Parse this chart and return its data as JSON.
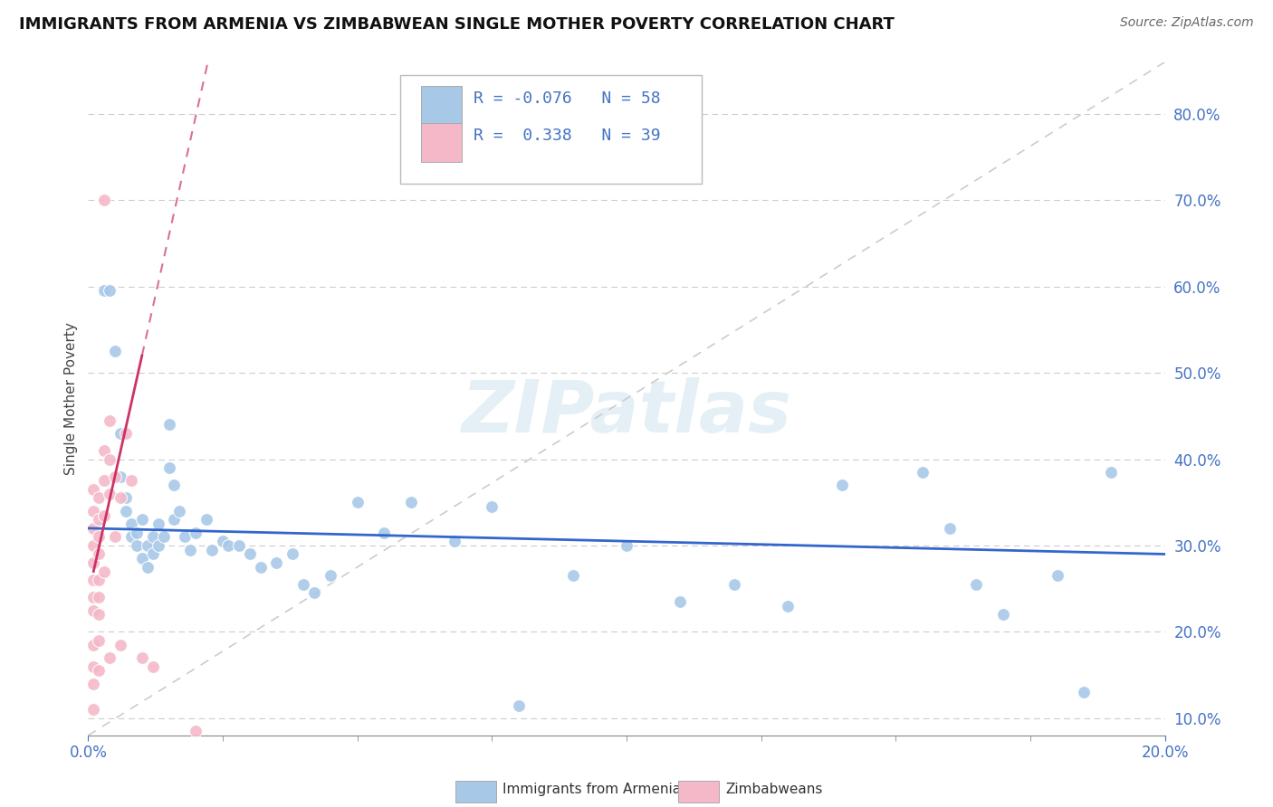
{
  "title": "IMMIGRANTS FROM ARMENIA VS ZIMBABWEAN SINGLE MOTHER POVERTY CORRELATION CHART",
  "source": "Source: ZipAtlas.com",
  "ylabel": "Single Mother Poverty",
  "legend_label1": "Immigrants from Armenia",
  "legend_label2": "Zimbabweans",
  "watermark": "ZIPatlas",
  "xlim": [
    0.0,
    0.2
  ],
  "ylim": [
    0.08,
    0.86
  ],
  "blue_color": "#a8c8e8",
  "pink_color": "#f4b8c8",
  "blue_line_color": "#3366cc",
  "pink_line_color": "#cc3366",
  "diag_color": "#cccccc",
  "grid_color": "#cccccc",
  "tick_color": "#4472c4",
  "legend_text_color": "#4472c4",
  "scatter_blue": [
    [
      0.003,
      0.595
    ],
    [
      0.004,
      0.595
    ],
    [
      0.005,
      0.525
    ],
    [
      0.006,
      0.43
    ],
    [
      0.006,
      0.38
    ],
    [
      0.007,
      0.355
    ],
    [
      0.007,
      0.34
    ],
    [
      0.008,
      0.325
    ],
    [
      0.008,
      0.31
    ],
    [
      0.009,
      0.315
    ],
    [
      0.009,
      0.3
    ],
    [
      0.01,
      0.33
    ],
    [
      0.01,
      0.285
    ],
    [
      0.011,
      0.3
    ],
    [
      0.011,
      0.275
    ],
    [
      0.012,
      0.31
    ],
    [
      0.012,
      0.29
    ],
    [
      0.013,
      0.325
    ],
    [
      0.013,
      0.3
    ],
    [
      0.014,
      0.31
    ],
    [
      0.015,
      0.44
    ],
    [
      0.015,
      0.39
    ],
    [
      0.016,
      0.37
    ],
    [
      0.016,
      0.33
    ],
    [
      0.017,
      0.34
    ],
    [
      0.018,
      0.31
    ],
    [
      0.019,
      0.295
    ],
    [
      0.02,
      0.315
    ],
    [
      0.022,
      0.33
    ],
    [
      0.023,
      0.295
    ],
    [
      0.025,
      0.305
    ],
    [
      0.026,
      0.3
    ],
    [
      0.028,
      0.3
    ],
    [
      0.03,
      0.29
    ],
    [
      0.032,
      0.275
    ],
    [
      0.035,
      0.28
    ],
    [
      0.038,
      0.29
    ],
    [
      0.04,
      0.255
    ],
    [
      0.042,
      0.245
    ],
    [
      0.045,
      0.265
    ],
    [
      0.05,
      0.35
    ],
    [
      0.055,
      0.315
    ],
    [
      0.06,
      0.35
    ],
    [
      0.068,
      0.305
    ],
    [
      0.075,
      0.345
    ],
    [
      0.08,
      0.115
    ],
    [
      0.09,
      0.265
    ],
    [
      0.1,
      0.3
    ],
    [
      0.11,
      0.235
    ],
    [
      0.12,
      0.255
    ],
    [
      0.13,
      0.23
    ],
    [
      0.14,
      0.37
    ],
    [
      0.155,
      0.385
    ],
    [
      0.16,
      0.32
    ],
    [
      0.165,
      0.255
    ],
    [
      0.17,
      0.22
    ],
    [
      0.18,
      0.265
    ],
    [
      0.185,
      0.13
    ],
    [
      0.19,
      0.385
    ]
  ],
  "scatter_pink": [
    [
      0.001,
      0.365
    ],
    [
      0.001,
      0.34
    ],
    [
      0.001,
      0.32
    ],
    [
      0.001,
      0.3
    ],
    [
      0.001,
      0.28
    ],
    [
      0.001,
      0.26
    ],
    [
      0.001,
      0.24
    ],
    [
      0.001,
      0.225
    ],
    [
      0.001,
      0.185
    ],
    [
      0.001,
      0.16
    ],
    [
      0.001,
      0.14
    ],
    [
      0.001,
      0.11
    ],
    [
      0.002,
      0.355
    ],
    [
      0.002,
      0.33
    ],
    [
      0.002,
      0.31
    ],
    [
      0.002,
      0.29
    ],
    [
      0.002,
      0.26
    ],
    [
      0.002,
      0.24
    ],
    [
      0.002,
      0.22
    ],
    [
      0.002,
      0.19
    ],
    [
      0.002,
      0.155
    ],
    [
      0.003,
      0.7
    ],
    [
      0.003,
      0.41
    ],
    [
      0.003,
      0.375
    ],
    [
      0.003,
      0.335
    ],
    [
      0.003,
      0.27
    ],
    [
      0.004,
      0.445
    ],
    [
      0.004,
      0.4
    ],
    [
      0.004,
      0.36
    ],
    [
      0.004,
      0.17
    ],
    [
      0.005,
      0.38
    ],
    [
      0.005,
      0.31
    ],
    [
      0.006,
      0.355
    ],
    [
      0.006,
      0.185
    ],
    [
      0.007,
      0.43
    ],
    [
      0.008,
      0.375
    ],
    [
      0.01,
      0.17
    ],
    [
      0.012,
      0.16
    ],
    [
      0.02,
      0.085
    ]
  ],
  "blue_trend_x": [
    0.0,
    0.2
  ],
  "blue_trend_y": [
    0.32,
    0.29
  ],
  "pink_trend_x": [
    0.001,
    0.01
  ],
  "pink_trend_y": [
    0.27,
    0.52
  ]
}
